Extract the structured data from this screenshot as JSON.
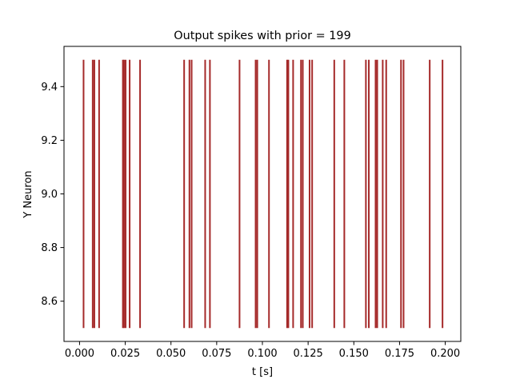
{
  "chart_data": {
    "type": "event_raster",
    "title": "Output spikes with prior = 199",
    "xlabel": "t [s]",
    "ylabel": "Y Neuron",
    "xlim": [
      -0.0085,
      0.2085
    ],
    "ylim": [
      8.45,
      9.55
    ],
    "xticks": [
      0.0,
      0.025,
      0.05,
      0.075,
      0.1,
      0.125,
      0.15,
      0.175,
      0.2
    ],
    "xtick_labels": [
      "0.000",
      "0.025",
      "0.050",
      "0.075",
      "0.100",
      "0.125",
      "0.150",
      "0.175",
      "0.200"
    ],
    "yticks": [
      8.6,
      8.8,
      9.0,
      9.2,
      9.4
    ],
    "ytick_labels": [
      "8.6",
      "8.8",
      "9.0",
      "9.2",
      "9.4"
    ],
    "series": [
      {
        "lineoffset": 9.0,
        "linelength": 1.0,
        "color": "#a52a2a",
        "spike_times": [
          0.0022,
          0.0072,
          0.0081,
          0.0107,
          0.0237,
          0.0243,
          0.0252,
          0.0274,
          0.0331,
          0.0572,
          0.0601,
          0.0613,
          0.0687,
          0.0713,
          0.0875,
          0.0963,
          0.0972,
          0.1036,
          0.1135,
          0.1142,
          0.1168,
          0.1211,
          0.1221,
          0.1258,
          0.1272,
          0.1393,
          0.1448,
          0.1566,
          0.1582,
          0.1619,
          0.1628,
          0.1658,
          0.1677,
          0.1758,
          0.1772,
          0.1915,
          0.1985
        ]
      }
    ],
    "grid": false,
    "legend": "none"
  }
}
